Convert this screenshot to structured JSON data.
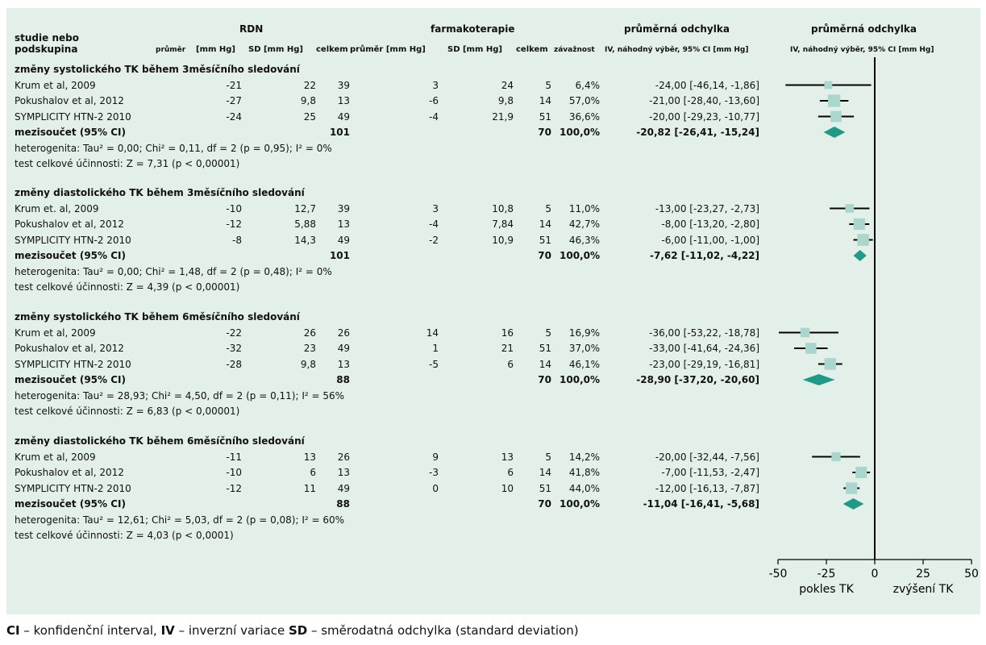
{
  "header": {
    "col_study_1": "studie nebo",
    "col_study_2": "podskupina",
    "rdn_title": "RDN",
    "rdn_mean": "průměr",
    "rdn_mean_unit": "[mm Hg]",
    "rdn_sd": "SD [mm Hg]",
    "rdn_total": "celkem",
    "pharm_title": "farmakoterapie",
    "pharm_mean": "průměr [mm Hg]",
    "pharm_sd": "SD [mm Hg]",
    "pharm_total": "celkem",
    "weight": "závažnost",
    "md_title": "průměrná odchylka",
    "md_sub": "IV, náhodný výběr, 95% CI [mm Hg]",
    "plot_title": "průměrná odchylka",
    "plot_sub": "IV, náhodný výběr, 95% CI [mm Hg]"
  },
  "axis": {
    "ticks": [
      "-50",
      "-25",
      "0",
      "25",
      "50"
    ],
    "left_label": "pokles TK",
    "right_label": "zvýšení TK"
  },
  "footer": {
    "ci_abbr": "CI",
    "ci_text": " – konfidenční interval, ",
    "iv_abbr": "IV",
    "iv_text": " – inverzní variace ",
    "sd_abbr": "SD",
    "sd_text": " – směrodatná odchylka (standard deviation)"
  },
  "chart_data": {
    "type": "forest",
    "xlim": [
      -50,
      50
    ],
    "null_line": 0,
    "colors": {
      "marker": "#a9d6cd",
      "diamond": "#1f9a86",
      "line": "#000000",
      "panel": "#e3efe9"
    },
    "groups": [
      {
        "title": "změny systolického TK během 3měsíčního sledování",
        "studies": [
          {
            "name": "Krum et al, 2009",
            "rdn_mean": "-21",
            "rdn_sd": "22",
            "rdn_n": "39",
            "ph_mean": "3",
            "ph_sd": "24",
            "ph_n": "5",
            "weight": "6,4%",
            "md_text": "-24,00 [-46,14, -1,86]",
            "md": -24.0,
            "lo": -46.14,
            "hi": -1.86
          },
          {
            "name": "Pokushalov et al, 2012",
            "rdn_mean": "-27",
            "rdn_sd": "9,8",
            "rdn_n": "13",
            "ph_mean": "-6",
            "ph_sd": "9,8",
            "ph_n": "14",
            "weight": "57,0%",
            "md_text": "-21,00 [-28,40, -13,60]",
            "md": -21.0,
            "lo": -28.4,
            "hi": -13.6
          },
          {
            "name": "SYMPLICITY HTN-2 2010",
            "rdn_mean": "-24",
            "rdn_sd": "25",
            "rdn_n": "49",
            "ph_mean": "-4",
            "ph_sd": "21,9",
            "ph_n": "51",
            "weight": "36,6%",
            "md_text": "-20,00 [-29,23, -10,77]",
            "md": -20.0,
            "lo": -29.23,
            "hi": -10.77
          }
        ],
        "subtotal": {
          "label": "mezisoučet (95% CI)",
          "rdn_n": "101",
          "ph_n": "70",
          "weight": "100,0%",
          "md_text": "-20,82 [-26,41, -15,24]",
          "md": -20.82,
          "lo": -26.41,
          "hi": -15.24
        },
        "heterogeneity": "heterogenita: Tau² = 0,00; Chi² = 0,11, df = 2 (p = 0,95); I² = 0%",
        "overall": "test celkové účinnosti: Z = 7,31 (p < 0,00001)"
      },
      {
        "title": "změny diastolického TK během 3měsíčního sledování",
        "studies": [
          {
            "name": "Krum et. al, 2009",
            "rdn_mean": "-10",
            "rdn_sd": "12,7",
            "rdn_n": "39",
            "ph_mean": "3",
            "ph_sd": "10,8",
            "ph_n": "5",
            "weight": "11,0%",
            "md_text": "-13,00 [-23,27, -2,73]",
            "md": -13.0,
            "lo": -23.27,
            "hi": -2.73
          },
          {
            "name": "Pokushalov et al, 2012",
            "rdn_mean": "-12",
            "rdn_sd": "5,88",
            "rdn_n": "13",
            "ph_mean": "-4",
            "ph_sd": "7,84",
            "ph_n": "14",
            "weight": "42,7%",
            "md_text": "-8,00 [-13,20, -2,80]",
            "md": -8.0,
            "lo": -13.2,
            "hi": -2.8
          },
          {
            "name": "SYMPLICITY HTN-2 2010",
            "rdn_mean": "-8",
            "rdn_sd": "14,3",
            "rdn_n": "49",
            "ph_mean": "-2",
            "ph_sd": "10,9",
            "ph_n": "51",
            "weight": "46,3%",
            "md_text": "-6,00 [-11,00, -1,00]",
            "md": -6.0,
            "lo": -11.0,
            "hi": -1.0
          }
        ],
        "subtotal": {
          "label": "mezisoučet (95% CI)",
          "rdn_n": "101",
          "ph_n": "70",
          "weight": "100,0%",
          "md_text": "-7,62 [-11,02, -4,22]",
          "md": -7.62,
          "lo": -11.02,
          "hi": -4.22
        },
        "heterogeneity": "heterogenita: Tau² = 0,00; Chi² = 1,48, df = 2 (p = 0,48); I² = 0%",
        "overall": "test celkové účinnosti: Z = 4,39 (p < 0,00001)"
      },
      {
        "title": "změny systolického TK během 6měsíčního sledování",
        "studies": [
          {
            "name": "Krum et al, 2009",
            "rdn_mean": "-22",
            "rdn_sd": "26",
            "rdn_n": "26",
            "ph_mean": "14",
            "ph_sd": "16",
            "ph_n": "5",
            "weight": "16,9%",
            "md_text": "-36,00 [-53,22, -18,78]",
            "md": -36.0,
            "lo": -53.22,
            "hi": -18.78
          },
          {
            "name": "Pokushalov et al, 2012",
            "rdn_mean": "-32",
            "rdn_sd": "23",
            "rdn_n": "49",
            "ph_mean": "1",
            "ph_sd": "21",
            "ph_n": "51",
            "weight": "37,0%",
            "md_text": "-33,00 [-41,64, -24,36]",
            "md": -33.0,
            "lo": -41.64,
            "hi": -24.36
          },
          {
            "name": "SYMPLICITY HTN-2 2010",
            "rdn_mean": "-28",
            "rdn_sd": "9,8",
            "rdn_n": "13",
            "ph_mean": "-5",
            "ph_sd": "6",
            "ph_n": "14",
            "weight": "46,1%",
            "md_text": "-23,00 [-29,19, -16,81]",
            "md": -23.0,
            "lo": -29.19,
            "hi": -16.81
          }
        ],
        "subtotal": {
          "label": "mezisoučet (95% CI)",
          "rdn_n": "88",
          "ph_n": "70",
          "weight": "100,0%",
          "md_text": "-28,90 [-37,20, -20,60]",
          "md": -28.9,
          "lo": -37.2,
          "hi": -20.6
        },
        "heterogeneity": "heterogenita: Tau² = 28,93; Chi² = 4,50, df = 2 (p = 0,11); I² = 56%",
        "overall": "test celkové účinnosti: Z = 6,83 (p < 0,00001)"
      },
      {
        "title": "změny diastolického TK během 6měsíčního sledování",
        "studies": [
          {
            "name": "Krum et al, 2009",
            "rdn_mean": "-11",
            "rdn_sd": "13",
            "rdn_n": "26",
            "ph_mean": "9",
            "ph_sd": "13",
            "ph_n": "5",
            "weight": "14,2%",
            "md_text": "-20,00 [-32,44, -7,56]",
            "md": -20.0,
            "lo": -32.44,
            "hi": -7.56
          },
          {
            "name": "Pokushalov et al, 2012",
            "rdn_mean": "-10",
            "rdn_sd": "6",
            "rdn_n": "13",
            "ph_mean": "-3",
            "ph_sd": "6",
            "ph_n": "14",
            "weight": "41,8%",
            "md_text": "-7,00 [-11,53, -2,47]",
            "md": -7.0,
            "lo": -11.53,
            "hi": -2.47
          },
          {
            "name": "SYMPLICITY HTN-2 2010",
            "rdn_mean": "-12",
            "rdn_sd": "11",
            "rdn_n": "49",
            "ph_mean": "0",
            "ph_sd": "10",
            "ph_n": "51",
            "weight": "44,0%",
            "md_text": "-12,00 [-16,13, -7,87]",
            "md": -12.0,
            "lo": -16.13,
            "hi": -7.87
          }
        ],
        "subtotal": {
          "label": "mezisoučet (95% CI)",
          "rdn_n": "88",
          "ph_n": "70",
          "weight": "100,0%",
          "md_text": "-11,04 [-16,41, -5,68]",
          "md": -11.04,
          "lo": -16.41,
          "hi": -5.68
        },
        "heterogeneity": "heterogenita: Tau² = 12,61; Chi² = 5,03, df = 2 (p = 0,08); I² = 60%",
        "overall": "test celkové účinnosti: Z = 4,03 (p < 0,0001)"
      }
    ]
  }
}
